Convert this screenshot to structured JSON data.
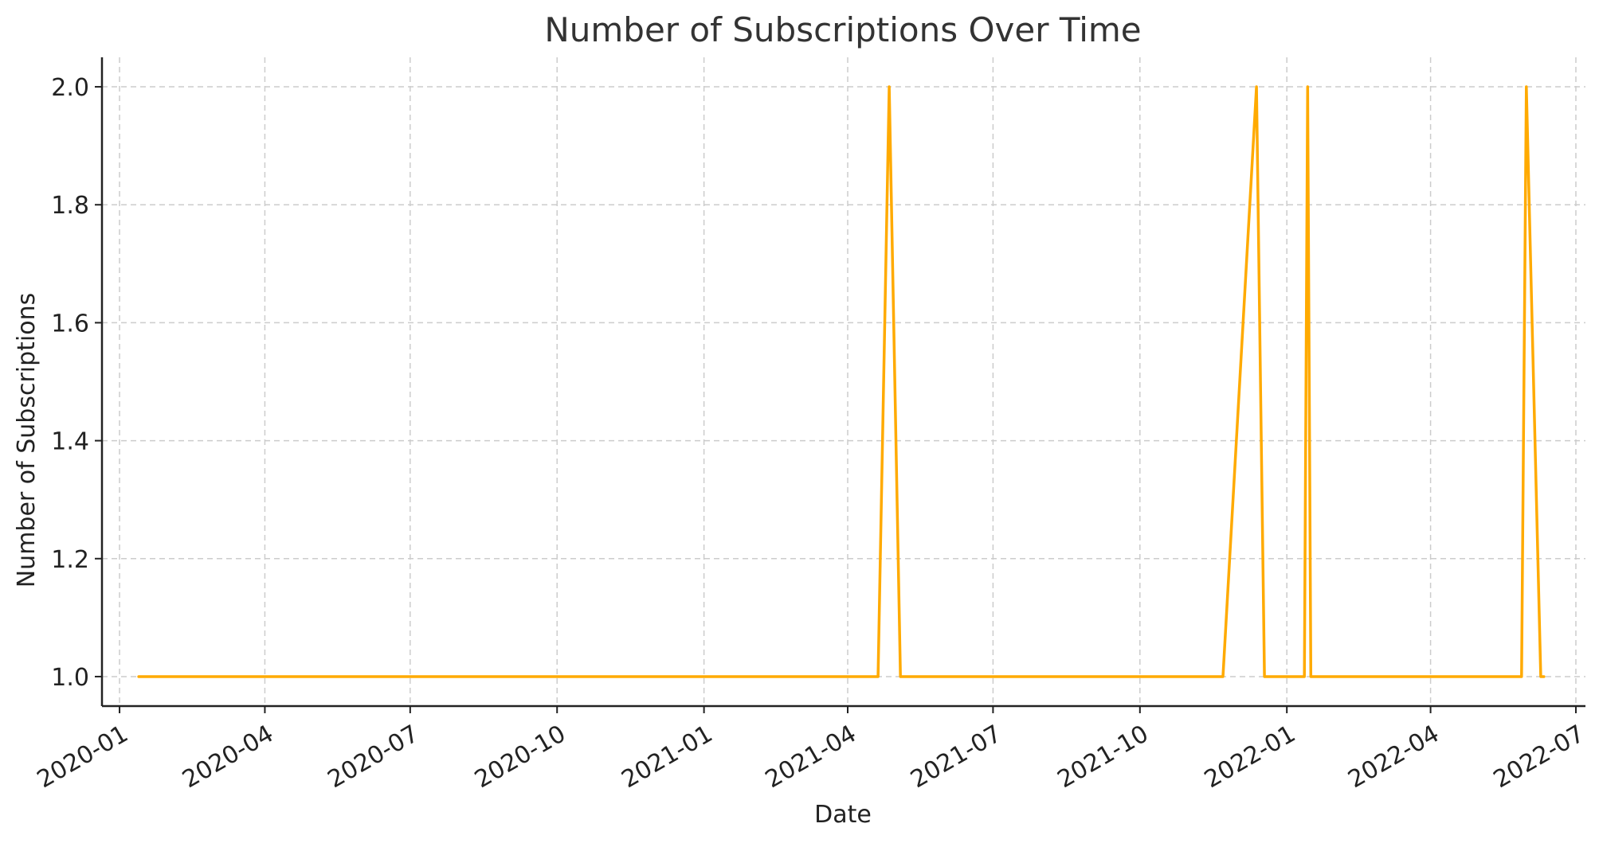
{
  "chart_data": {
    "type": "line",
    "title": "Number of Subscriptions Over Time",
    "xlabel": "Date",
    "ylabel": "Number of Subscriptions",
    "x_ticks": [
      "2020-01",
      "2020-04",
      "2020-07",
      "2020-10",
      "2021-01",
      "2021-04",
      "2021-07",
      "2021-10",
      "2022-01",
      "2022-04",
      "2022-07"
    ],
    "y_ticks": [
      "1.0",
      "1.2",
      "1.4",
      "1.6",
      "1.8",
      "2.0"
    ],
    "xlim": [
      "2019-12-21",
      "2022-07-07"
    ],
    "ylim": [
      0.95,
      2.05
    ],
    "grid": true,
    "colors": {
      "line": "#ffaa00"
    },
    "series": [
      {
        "x": [
          "2020-01-13",
          "2021-04-20",
          "2021-04-27",
          "2021-05-04",
          "2021-11-22",
          "2021-12-13",
          "2021-12-18",
          "2022-01-12",
          "2022-01-14",
          "2022-01-16",
          "2022-05-28",
          "2022-05-31",
          "2022-06-09",
          "2022-06-11"
        ],
        "values": [
          1,
          1,
          2,
          1,
          1,
          2,
          1,
          1,
          2,
          1,
          1,
          2,
          1,
          1
        ]
      }
    ]
  }
}
